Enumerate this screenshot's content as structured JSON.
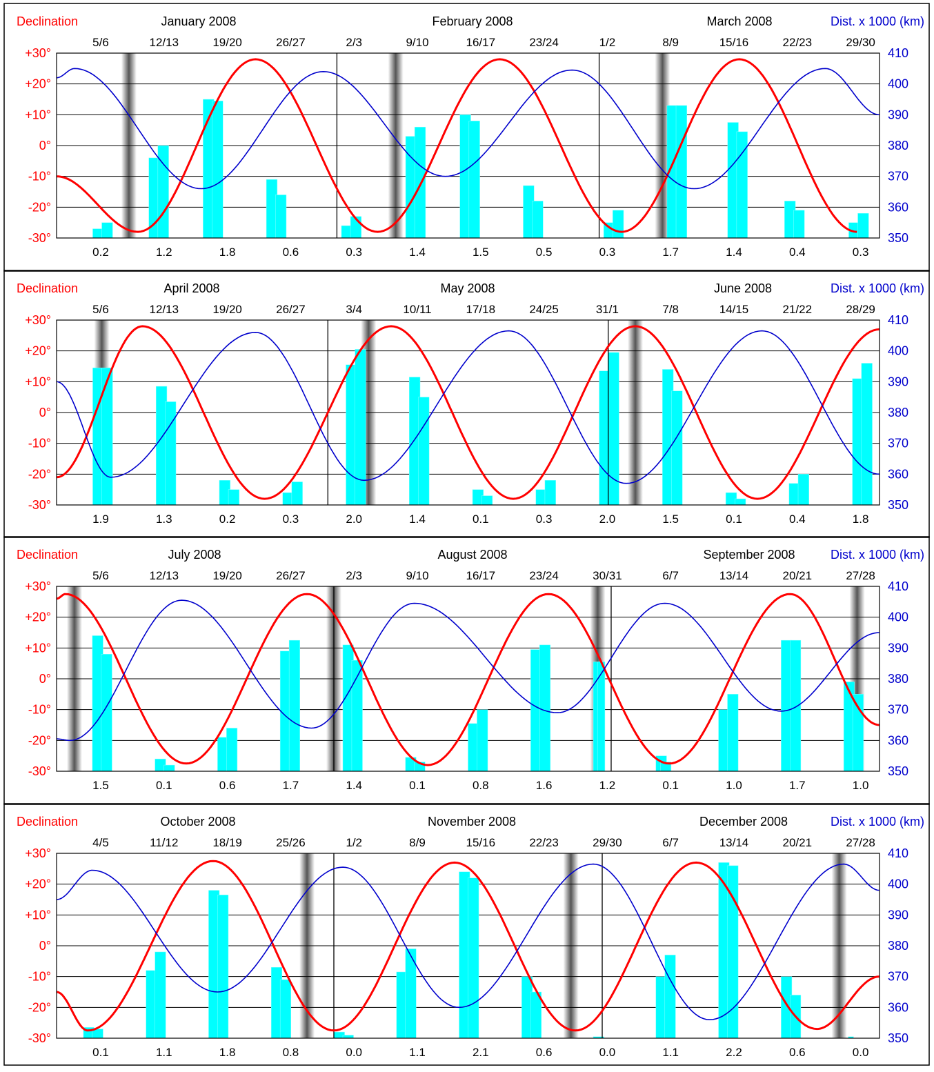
{
  "chart_data": [
    {
      "type": "line",
      "left_axis_label": "Declination",
      "right_axis_label": "Dist. x 1000 (km)",
      "ylim_left": [
        -30,
        30
      ],
      "ylim_right": [
        350,
        410
      ],
      "y_tick_labels_left": [
        "+30°",
        "+20°",
        "+10°",
        "0°",
        "-10°",
        "-20°",
        "-30°"
      ],
      "y_tick_labels_right": [
        "410",
        "400",
        "390",
        "380",
        "370",
        "360",
        "350"
      ],
      "months": [
        "January 2008",
        "February 2008",
        "March 2008"
      ],
      "month_boundaries": [
        31,
        60
      ],
      "week_labels": [
        "5/6",
        "12/13",
        "19/20",
        "26/27",
        "2/3",
        "9/10",
        "16/17",
        "23/24",
        "1/2",
        "8/9",
        "15/16",
        "22/23",
        "29/30"
      ],
      "bottom_labels": [
        "0.2",
        "1.2",
        "1.8",
        "0.6",
        "0.3",
        "1.4",
        "1.5",
        "0.5",
        "0.3",
        "1.7",
        "1.4",
        "0.4",
        "0.3"
      ],
      "days": 91,
      "new_moons": [
        8.0,
        37.5,
        67.0
      ],
      "series": [
        {
          "name": "Declination",
          "color": "#ff0000",
          "axis": "left",
          "x": [
            0.0,
            9.0,
            22.0,
            35.5,
            49.0,
            62.5,
            75.5,
            88.5
          ],
          "y": [
            -10.0,
            -28.0,
            28.0,
            -28.0,
            28.0,
            -28.0,
            28.0,
            -28.0
          ]
        },
        {
          "name": "Dist. x 1000 (km)",
          "color": "#0000cc",
          "axis": "right",
          "x": [
            0.0,
            2.0,
            16.0,
            29.5,
            43.0,
            57.0,
            70.5,
            85.0,
            91.0
          ],
          "y": [
            402.0,
            405.0,
            366.0,
            404.0,
            370.0,
            404.5,
            366.0,
            405.0,
            390.0
          ]
        }
      ],
      "bars": [
        [
          4.0,
          5.8,
          -30,
          -27
        ],
        [
          5.0,
          6.2,
          -30,
          -25
        ],
        [
          10.2,
          11.4,
          -30,
          -4
        ],
        [
          11.2,
          12.4,
          -30,
          0
        ],
        [
          16.2,
          17.4,
          -30,
          15
        ],
        [
          17.2,
          18.4,
          -30,
          14.5
        ],
        [
          23.2,
          24.4,
          -30,
          -11
        ],
        [
          24.2,
          25.4,
          -30,
          -16
        ],
        [
          31.5,
          32.7,
          -30,
          -26
        ],
        [
          32.5,
          33.7,
          -30,
          -23
        ],
        [
          38.6,
          39.8,
          -30,
          3
        ],
        [
          39.6,
          40.8,
          -30,
          6
        ],
        [
          44.6,
          45.8,
          -30,
          10
        ],
        [
          45.6,
          46.8,
          -30,
          8
        ],
        [
          51.6,
          52.8,
          -30,
          -13
        ],
        [
          52.6,
          53.8,
          -30,
          -18
        ],
        [
          60.5,
          61.7,
          -30,
          -25
        ],
        [
          61.5,
          62.7,
          -30,
          -21
        ],
        [
          67.5,
          68.7,
          -30,
          13
        ],
        [
          68.5,
          69.7,
          -30,
          13
        ],
        [
          74.2,
          75.4,
          -30,
          7.5
        ],
        [
          75.2,
          76.4,
          -30,
          4.5
        ],
        [
          80.5,
          81.7,
          -30,
          -18
        ],
        [
          81.5,
          82.7,
          -30,
          -21
        ],
        [
          87.6,
          88.8,
          -30,
          -25
        ],
        [
          88.6,
          89.8,
          -30,
          -22
        ]
      ]
    },
    {
      "type": "line",
      "left_axis_label": "Declination",
      "right_axis_label": "Dist. x 1000 (km)",
      "ylim_left": [
        -30,
        30
      ],
      "ylim_right": [
        350,
        410
      ],
      "y_tick_labels_left": [
        "+30°",
        "+20°",
        "+10°",
        "0°",
        "-10°",
        "-20°",
        "-30°"
      ],
      "y_tick_labels_right": [
        "410",
        "400",
        "390",
        "380",
        "370",
        "360",
        "350"
      ],
      "months": [
        "April 2008",
        "May 2008",
        "June 2008"
      ],
      "month_boundaries": [
        30,
        61
      ],
      "week_labels": [
        "5/6",
        "12/13",
        "19/20",
        "26/27",
        "3/4",
        "10/11",
        "17/18",
        "24/25",
        "31/1",
        "7/8",
        "14/15",
        "21/22",
        "28/29"
      ],
      "bottom_labels": [
        "1.9",
        "1.3",
        "0.2",
        "0.3",
        "2.0",
        "1.4",
        "0.1",
        "0.3",
        "2.0",
        "1.5",
        "0.1",
        "0.4",
        "1.8"
      ],
      "days": 91,
      "new_moons": [
        5.0,
        34.5,
        64.0
      ],
      "series": [
        {
          "name": "Declination",
          "color": "#ff0000",
          "axis": "left",
          "x": [
            0.0,
            9.5,
            23.0,
            37.0,
            50.5,
            64.0,
            77.5,
            91.0
          ],
          "y": [
            -21.0,
            28.0,
            -28.0,
            28.0,
            -28.0,
            28.0,
            -28.0,
            27.0
          ]
        },
        {
          "name": "Dist. x 1000 (km)",
          "color": "#0000cc",
          "axis": "right",
          "x": [
            0.0,
            6.0,
            22.0,
            34.0,
            50.0,
            63.0,
            78.0,
            91.0
          ],
          "y": [
            390.0,
            359.0,
            406.0,
            358.0,
            406.5,
            357.0,
            406.5,
            360.0
          ]
        }
      ],
      "bars": [
        [
          4.0,
          5.2,
          -30,
          14.5
        ],
        [
          5.0,
          6.2,
          -30,
          14.5
        ],
        [
          11.0,
          12.2,
          -30,
          8.5
        ],
        [
          12.0,
          13.2,
          -30,
          3.5
        ],
        [
          18.0,
          19.2,
          -30,
          -22
        ],
        [
          19.0,
          20.2,
          -30,
          -25
        ],
        [
          25.0,
          26.2,
          -30,
          -26
        ],
        [
          26.0,
          27.2,
          -30,
          -22.5
        ],
        [
          32.0,
          33.2,
          -30,
          15.5
        ],
        [
          33.0,
          34.2,
          -30,
          20.5
        ],
        [
          39.0,
          40.2,
          -30,
          11.5
        ],
        [
          40.0,
          41.2,
          -30,
          5
        ],
        [
          46.0,
          47.2,
          -30,
          -25
        ],
        [
          47.0,
          48.2,
          -30,
          -27
        ],
        [
          53.0,
          54.2,
          -30,
          -25
        ],
        [
          54.0,
          55.2,
          -30,
          -22
        ],
        [
          60.0,
          61.2,
          -30,
          13.5
        ],
        [
          61.0,
          62.2,
          -30,
          19.5
        ],
        [
          67.0,
          68.2,
          -30,
          14
        ],
        [
          68.0,
          69.2,
          -30,
          7
        ],
        [
          74.0,
          75.2,
          -30,
          -26
        ],
        [
          75.0,
          76.2,
          -30,
          -28
        ],
        [
          81.0,
          82.2,
          -30,
          -23
        ],
        [
          82.0,
          83.2,
          -30,
          -20
        ],
        [
          88.0,
          89.2,
          -30,
          11
        ],
        [
          89.0,
          90.2,
          -30,
          16
        ]
      ]
    },
    {
      "type": "line",
      "left_axis_label": "Declination",
      "right_axis_label": "Dist. x 1000 (km)",
      "ylim_left": [
        -30,
        30
      ],
      "ylim_right": [
        350,
        410
      ],
      "y_tick_labels_left": [
        "+30°",
        "+20°",
        "+10°",
        "0°",
        "-10°",
        "-20°",
        "-30°"
      ],
      "y_tick_labels_right": [
        "410",
        "400",
        "390",
        "380",
        "370",
        "360",
        "350"
      ],
      "months": [
        "July 2008",
        "August 2008",
        "September 2008"
      ],
      "month_boundaries": [
        31,
        62
      ],
      "week_labels": [
        "5/6",
        "12/13",
        "19/20",
        "26/27",
        "2/3",
        "9/10",
        "16/17",
        "23/24",
        "30/31",
        "6/7",
        "13/14",
        "20/21",
        "27/28"
      ],
      "bottom_labels": [
        "1.5",
        "0.1",
        "0.6",
        "1.7",
        "1.4",
        "0.1",
        "0.8",
        "1.6",
        "1.2",
        "0.1",
        "1.0",
        "1.7",
        "1.0"
      ],
      "days": 92,
      "new_moons": [
        2.0,
        31.0,
        60.5,
        89.5
      ],
      "series": [
        {
          "name": "Declination",
          "color": "#ff0000",
          "axis": "left",
          "x": [
            0.0,
            1.0,
            14.5,
            28.0,
            41.5,
            55.0,
            68.5,
            82.0,
            92.0
          ],
          "y": [
            26.0,
            27.5,
            -27.5,
            27.5,
            -28.0,
            27.5,
            -27.5,
            27.5,
            -15.0
          ]
        },
        {
          "name": "Dist. x 1000 (km)",
          "color": "#0000cc",
          "axis": "right",
          "x": [
            0.0,
            1.5,
            14.0,
            28.5,
            40.0,
            56.0,
            68.0,
            81.0,
            92.0
          ],
          "y": [
            360.5,
            360.0,
            405.5,
            364.0,
            404.5,
            369.0,
            404.5,
            369.5,
            395.0
          ]
        }
      ],
      "bars": [
        [
          4.0,
          5.2,
          -30,
          14
        ],
        [
          5.0,
          6.2,
          -30,
          8
        ],
        [
          11.0,
          12.2,
          -30,
          -26
        ],
        [
          12.0,
          13.2,
          -30,
          -28
        ],
        [
          18.0,
          19.2,
          -30,
          -19
        ],
        [
          19.0,
          20.2,
          -30,
          -16
        ],
        [
          25.0,
          26.2,
          -30,
          9
        ],
        [
          26.0,
          27.2,
          -30,
          12.5
        ],
        [
          32.0,
          33.2,
          -30,
          11
        ],
        [
          33.0,
          34.2,
          -30,
          6
        ],
        [
          39.0,
          40.2,
          -30,
          -25.5
        ],
        [
          40.0,
          41.2,
          -30,
          -27
        ],
        [
          46.0,
          47.2,
          -30,
          -14.5
        ],
        [
          47.0,
          48.2,
          -30,
          -10
        ],
        [
          53.0,
          54.2,
          -30,
          9.5
        ],
        [
          54.0,
          55.2,
          -30,
          11
        ],
        [
          60.0,
          61.2,
          -30,
          5.5
        ],
        [
          60.5,
          61.3,
          -30,
          5.5
        ],
        [
          67.0,
          68.2,
          -30,
          -25
        ],
        [
          67.5,
          68.7,
          -30,
          -27
        ],
        [
          74.0,
          75.2,
          -30,
          -10
        ],
        [
          75.0,
          76.2,
          -30,
          -5
        ],
        [
          81.0,
          82.2,
          -30,
          12.5
        ],
        [
          82.0,
          83.2,
          -30,
          12.5
        ],
        [
          88.0,
          89.2,
          -30,
          -1
        ],
        [
          89.0,
          90.2,
          -30,
          -5
        ]
      ]
    },
    {
      "type": "line",
      "left_axis_label": "Declination",
      "right_axis_label": "Dist. x 1000 (km)",
      "ylim_left": [
        -30,
        30
      ],
      "ylim_right": [
        350,
        410
      ],
      "y_tick_labels_left": [
        "+30°",
        "+20°",
        "+10°",
        "0°",
        "-10°",
        "-20°",
        "-30°"
      ],
      "y_tick_labels_right": [
        "410",
        "400",
        "390",
        "380",
        "370",
        "360",
        "350"
      ],
      "months": [
        "October 2008",
        "November 2008",
        "December 2008"
      ],
      "month_boundaries": [
        31,
        61
      ],
      "week_labels": [
        "4/5",
        "11/12",
        "18/19",
        "25/26",
        "1/2",
        "8/9",
        "15/16",
        "22/23",
        "29/30",
        "6/7",
        "13/14",
        "20/21",
        "27/28"
      ],
      "bottom_labels": [
        "0.1",
        "1.1",
        "1.8",
        "0.8",
        "0.0",
        "1.1",
        "2.1",
        "0.6",
        "0.0",
        "1.1",
        "2.2",
        "0.6",
        "0.0"
      ],
      "days": 92,
      "new_moons": [
        28.0,
        57.5,
        87.5
      ],
      "series": [
        {
          "name": "Declination",
          "color": "#ff0000",
          "axis": "left",
          "x": [
            0.0,
            3.5,
            17.5,
            31.0,
            44.5,
            58.0,
            71.5,
            85.0,
            92.0
          ],
          "y": [
            -15.0,
            -27.5,
            27.5,
            -27.5,
            27.0,
            -27.5,
            27.0,
            -27.0,
            -10.0
          ]
        },
        {
          "name": "Dist. x 1000 (km)",
          "color": "#0000cc",
          "axis": "right",
          "x": [
            0.0,
            4.0,
            18.0,
            32.0,
            45.0,
            60.0,
            73.0,
            88.0,
            92.0
          ],
          "y": [
            395.0,
            404.5,
            365.0,
            405.5,
            360.0,
            406.5,
            356.0,
            406.5,
            398.0
          ]
        }
      ],
      "bars": [
        [
          3.0,
          4.2,
          -30,
          -26.5
        ],
        [
          4.0,
          5.2,
          -30,
          -27
        ],
        [
          10.0,
          11.2,
          -30,
          -8
        ],
        [
          11.0,
          12.2,
          -30,
          -2
        ],
        [
          17.0,
          18.2,
          -30,
          18
        ],
        [
          18.0,
          19.2,
          -30,
          16.5
        ],
        [
          24.0,
          25.2,
          -30,
          -7
        ],
        [
          25.0,
          26.2,
          -30,
          -11
        ],
        [
          31.0,
          32.2,
          -30,
          -28
        ],
        [
          32.0,
          33.2,
          -30,
          -29
        ],
        [
          38.0,
          39.2,
          -30,
          -8.5
        ],
        [
          39.0,
          40.2,
          -30,
          -1
        ],
        [
          45.0,
          46.2,
          -30,
          24
        ],
        [
          46.0,
          47.2,
          -30,
          22
        ],
        [
          52.0,
          53.2,
          -30,
          -10
        ],
        [
          53.0,
          54.2,
          -30,
          -15
        ],
        [
          60.0,
          61.2,
          -30,
          -29.5
        ],
        [
          67.0,
          68.2,
          -30,
          -10
        ],
        [
          68.0,
          69.2,
          -30,
          -3
        ],
        [
          74.0,
          75.2,
          -30,
          27
        ],
        [
          75.0,
          76.2,
          -30,
          26
        ],
        [
          81.0,
          82.2,
          -30,
          -10
        ],
        [
          82.0,
          83.2,
          -30,
          -16
        ],
        [
          88.5,
          89.1,
          -30,
          -29.5
        ]
      ]
    }
  ],
  "colors": {
    "declination": "#ff0000",
    "distance": "#0000cc",
    "bars": "#00ffff",
    "grid": "#000000"
  }
}
